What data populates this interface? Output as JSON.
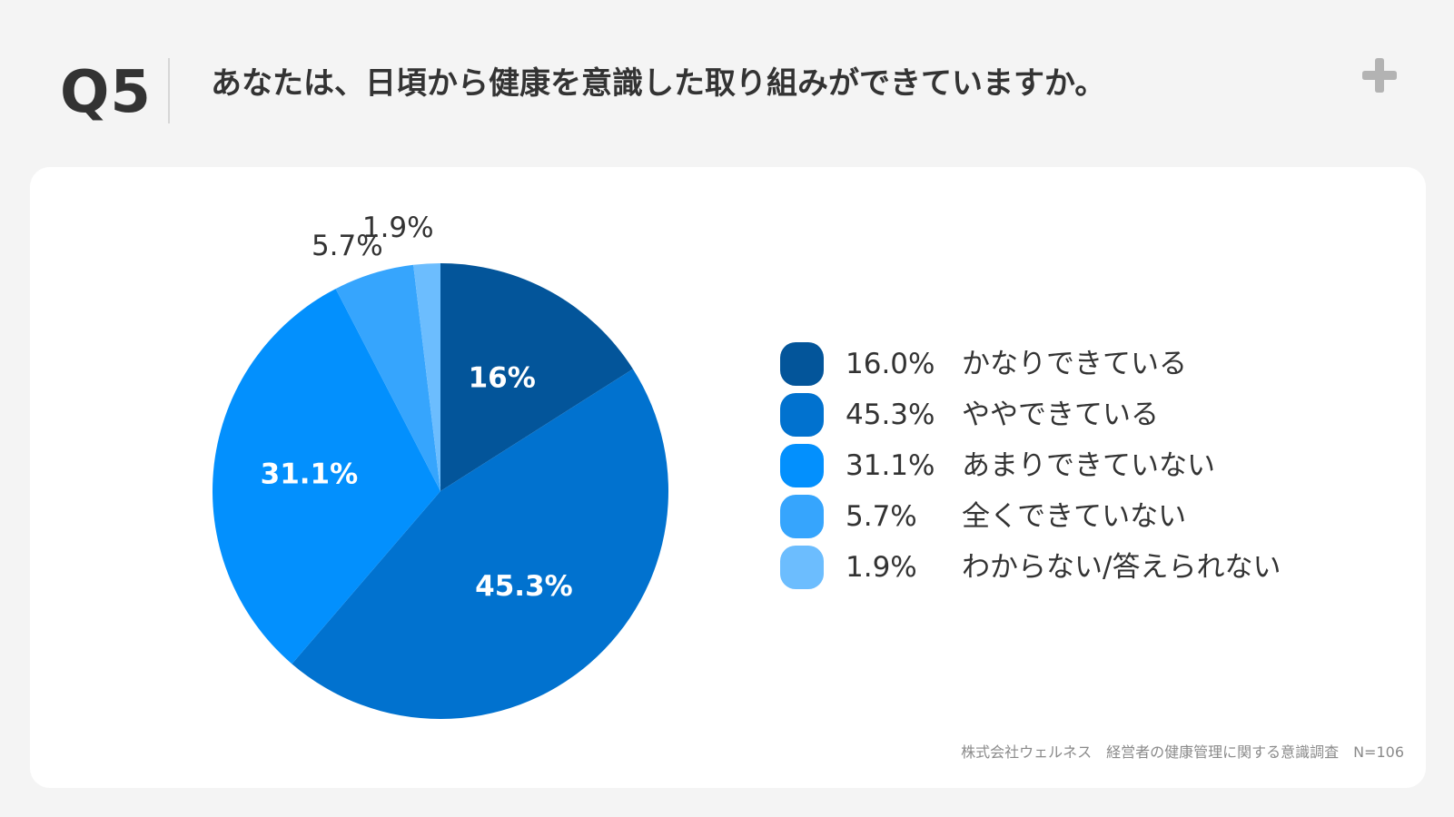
{
  "header": {
    "question_number": "Q5",
    "question_text": "あなたは、日頃から健康を意識した取り組みができていますか。"
  },
  "icons": {
    "corner": "plus-icon"
  },
  "colors": {
    "background": "#f4f4f4",
    "card": "#ffffff",
    "text": "#333333",
    "footer_text": "#8a8a8a",
    "icon": "#b3b3b3"
  },
  "chart_data": {
    "type": "pie",
    "title": "",
    "slices": [
      {
        "label": "かなりできている",
        "value": 16.0,
        "legend_value": "16.0%",
        "data_label": "16%",
        "color": "#03559a"
      },
      {
        "label": "ややできている",
        "value": 45.3,
        "legend_value": "45.3%",
        "data_label": "45.3%",
        "color": "#0172cf"
      },
      {
        "label": "あまりできていない",
        "value": 31.1,
        "legend_value": "31.1%",
        "data_label": "31.1%",
        "color": "#0390fd"
      },
      {
        "label": "全くできていない",
        "value": 5.7,
        "legend_value": "5.7%",
        "data_label": "5.7%",
        "color": "#36a5fd"
      },
      {
        "label": "わからない/答えられない",
        "value": 1.9,
        "legend_value": "1.9%",
        "data_label": "1.9%",
        "color": "#6cbdfe"
      }
    ],
    "legend_position": "right"
  },
  "footer": {
    "source": "株式会社ウェルネス　経営者の健康管理に関する意識調査　N=106"
  }
}
